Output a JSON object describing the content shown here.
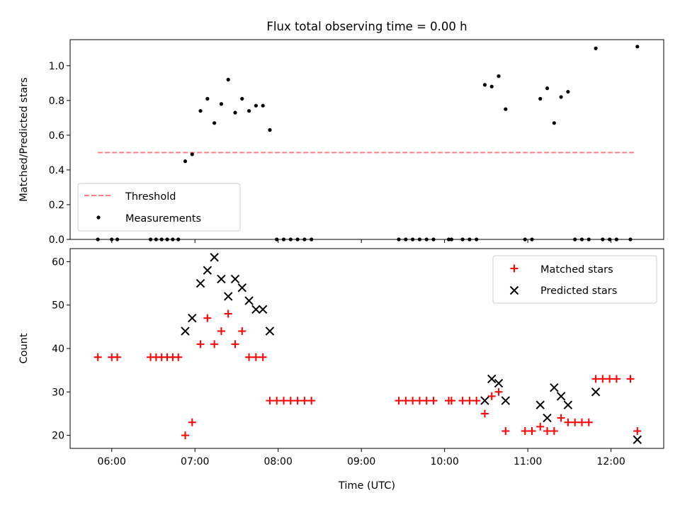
{
  "title": "Flux total observing time = 0.00 h",
  "xlabel": "Time (UTC)",
  "colors": {
    "threshold": "#ff7f7f",
    "measurement": "#000000",
    "matched": "#ff0000",
    "predicted": "#000000"
  },
  "chart_data": [
    {
      "type": "scatter",
      "ylabel": "Matched/Predicted stars",
      "ylim": [
        0,
        1.15
      ],
      "yticks": [
        0.0,
        0.2,
        0.4,
        0.6,
        0.8,
        1.0
      ],
      "ytick_labels": [
        "0.0",
        "0.2",
        "0.4",
        "0.6",
        "0.8",
        "1.0"
      ],
      "legend": {
        "placement": "lower-left",
        "entries": [
          "Threshold",
          "Measurements"
        ]
      },
      "threshold": {
        "name": "Threshold",
        "y": 0.5,
        "x_start": "05:50",
        "x_end": "12:18",
        "style": "dashed"
      },
      "measurements": {
        "name": "Measurements",
        "points": [
          [
            "05:50",
            0.0
          ],
          [
            "06:00",
            0.0
          ],
          [
            "06:04",
            0.0
          ],
          [
            "06:28",
            0.0
          ],
          [
            "06:32",
            0.0
          ],
          [
            "06:36",
            0.0
          ],
          [
            "06:40",
            0.0
          ],
          [
            "06:44",
            0.0
          ],
          [
            "06:48",
            0.0
          ],
          [
            "06:53",
            0.45
          ],
          [
            "06:58",
            0.49
          ],
          [
            "07:04",
            0.74
          ],
          [
            "07:09",
            0.81
          ],
          [
            "07:14",
            0.67
          ],
          [
            "07:19",
            0.78
          ],
          [
            "07:24",
            0.92
          ],
          [
            "07:29",
            0.73
          ],
          [
            "07:34",
            0.81
          ],
          [
            "07:39",
            0.74
          ],
          [
            "07:44",
            0.77
          ],
          [
            "07:49",
            0.77
          ],
          [
            "07:54",
            0.63
          ],
          [
            "07:59",
            0.0
          ],
          [
            "08:04",
            0.0
          ],
          [
            "08:09",
            0.0
          ],
          [
            "08:14",
            0.0
          ],
          [
            "08:19",
            0.0
          ],
          [
            "08:24",
            0.0
          ],
          [
            "09:27",
            0.0
          ],
          [
            "09:32",
            0.0
          ],
          [
            "09:37",
            0.0
          ],
          [
            "09:42",
            0.0
          ],
          [
            "09:47",
            0.0
          ],
          [
            "09:52",
            0.0
          ],
          [
            "10:03",
            0.0
          ],
          [
            "10:05",
            0.0
          ],
          [
            "10:13",
            0.0
          ],
          [
            "10:18",
            0.0
          ],
          [
            "10:23",
            0.0
          ],
          [
            "10:29",
            0.89
          ],
          [
            "10:34",
            0.88
          ],
          [
            "10:39",
            0.94
          ],
          [
            "10:44",
            0.75
          ],
          [
            "10:58",
            0.0
          ],
          [
            "11:03",
            0.0
          ],
          [
            "11:09",
            0.81
          ],
          [
            "11:14",
            0.87
          ],
          [
            "11:19",
            0.67
          ],
          [
            "11:24",
            0.82
          ],
          [
            "11:29",
            0.85
          ],
          [
            "11:34",
            0.0
          ],
          [
            "11:39",
            0.0
          ],
          [
            "11:44",
            0.0
          ],
          [
            "11:49",
            1.1
          ],
          [
            "11:54",
            0.0
          ],
          [
            "11:59",
            0.0
          ],
          [
            "12:04",
            0.0
          ],
          [
            "12:14",
            0.0
          ],
          [
            "12:19",
            1.11
          ]
        ]
      }
    },
    {
      "type": "scatter",
      "ylabel": "Count",
      "ylim": [
        17,
        63
      ],
      "yticks": [
        20,
        30,
        40,
        50,
        60
      ],
      "ytick_labels": [
        "20",
        "30",
        "40",
        "50",
        "60"
      ],
      "xlim": [
        "05:30",
        "12:38"
      ],
      "xticks": [
        "06:00",
        "07:00",
        "08:00",
        "09:00",
        "10:00",
        "11:00",
        "12:00"
      ],
      "xtick_labels": [
        "06:00",
        "07:00",
        "08:00",
        "09:00",
        "10:00",
        "11:00",
        "12:00"
      ],
      "legend": {
        "placement": "upper-right",
        "entries": [
          "Matched stars",
          "Predicted stars"
        ]
      },
      "series": [
        {
          "name": "Matched stars",
          "marker": "plus",
          "points": [
            [
              "05:50",
              38
            ],
            [
              "06:00",
              38
            ],
            [
              "06:04",
              38
            ],
            [
              "06:28",
              38
            ],
            [
              "06:32",
              38
            ],
            [
              "06:36",
              38
            ],
            [
              "06:40",
              38
            ],
            [
              "06:44",
              38
            ],
            [
              "06:48",
              38
            ],
            [
              "06:53",
              20
            ],
            [
              "06:58",
              23
            ],
            [
              "07:04",
              41
            ],
            [
              "07:09",
              47
            ],
            [
              "07:14",
              41
            ],
            [
              "07:19",
              44
            ],
            [
              "07:24",
              48
            ],
            [
              "07:29",
              41
            ],
            [
              "07:34",
              44
            ],
            [
              "07:39",
              38
            ],
            [
              "07:44",
              38
            ],
            [
              "07:49",
              38
            ],
            [
              "07:54",
              28
            ],
            [
              "07:59",
              28
            ],
            [
              "08:04",
              28
            ],
            [
              "08:09",
              28
            ],
            [
              "08:14",
              28
            ],
            [
              "08:19",
              28
            ],
            [
              "08:24",
              28
            ],
            [
              "09:27",
              28
            ],
            [
              "09:32",
              28
            ],
            [
              "09:37",
              28
            ],
            [
              "09:42",
              28
            ],
            [
              "09:47",
              28
            ],
            [
              "09:52",
              28
            ],
            [
              "10:03",
              28
            ],
            [
              "10:05",
              28
            ],
            [
              "10:13",
              28
            ],
            [
              "10:18",
              28
            ],
            [
              "10:23",
              28
            ],
            [
              "10:29",
              25
            ],
            [
              "10:34",
              29
            ],
            [
              "10:39",
              30
            ],
            [
              "10:44",
              21
            ],
            [
              "10:58",
              21
            ],
            [
              "11:03",
              21
            ],
            [
              "11:09",
              22
            ],
            [
              "11:14",
              21
            ],
            [
              "11:19",
              21
            ],
            [
              "11:24",
              24
            ],
            [
              "11:29",
              23
            ],
            [
              "11:34",
              23
            ],
            [
              "11:39",
              23
            ],
            [
              "11:44",
              23
            ],
            [
              "11:49",
              33
            ],
            [
              "11:54",
              33
            ],
            [
              "11:59",
              33
            ],
            [
              "12:04",
              33
            ],
            [
              "12:14",
              33
            ],
            [
              "12:19",
              21
            ]
          ]
        },
        {
          "name": "Predicted stars",
          "marker": "x",
          "points": [
            [
              "06:53",
              44
            ],
            [
              "06:58",
              47
            ],
            [
              "07:04",
              55
            ],
            [
              "07:09",
              58
            ],
            [
              "07:14",
              61
            ],
            [
              "07:19",
              56
            ],
            [
              "07:24",
              52
            ],
            [
              "07:29",
              56
            ],
            [
              "07:34",
              54
            ],
            [
              "07:39",
              51
            ],
            [
              "07:44",
              49
            ],
            [
              "07:49",
              49
            ],
            [
              "07:54",
              44
            ],
            [
              "10:29",
              28
            ],
            [
              "10:34",
              33
            ],
            [
              "10:39",
              32
            ],
            [
              "10:44",
              28
            ],
            [
              "11:09",
              27
            ],
            [
              "11:14",
              24
            ],
            [
              "11:19",
              31
            ],
            [
              "11:24",
              29
            ],
            [
              "11:29",
              27
            ],
            [
              "11:49",
              30
            ],
            [
              "12:19",
              19
            ]
          ]
        }
      ]
    }
  ]
}
